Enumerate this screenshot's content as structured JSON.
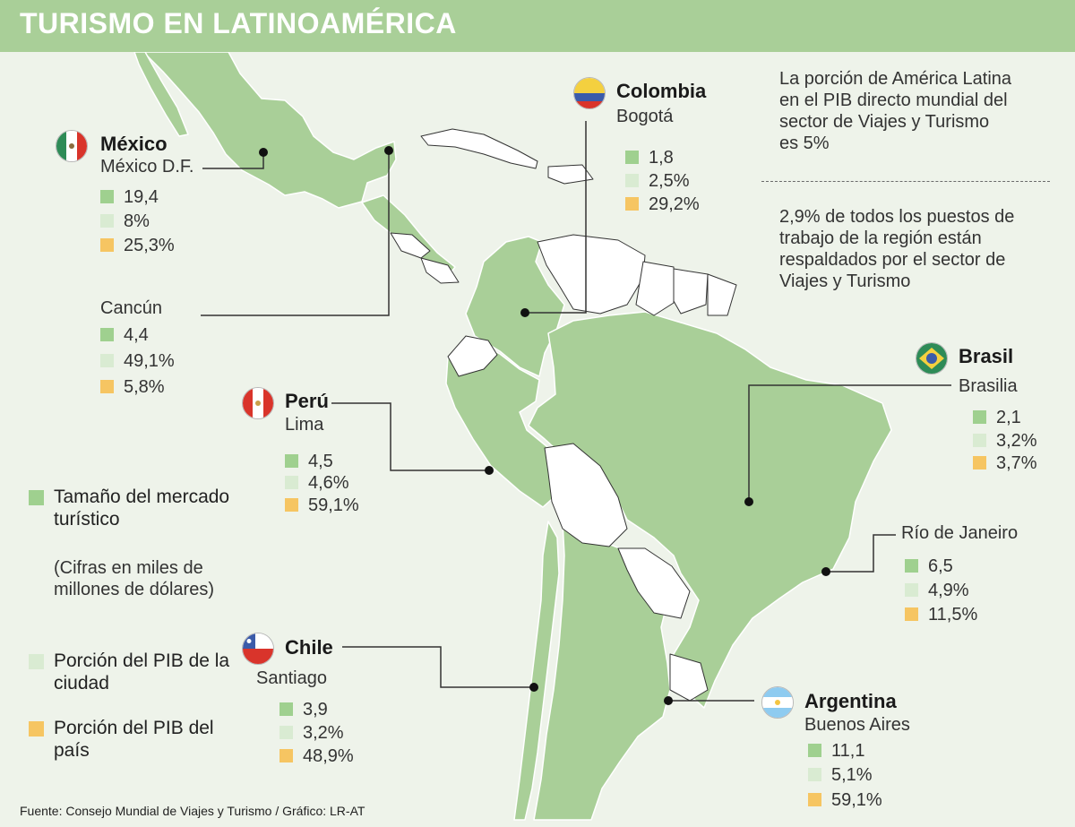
{
  "title": "TURISMO EN LATINOAMÉRICA",
  "notes": {
    "pib_share": "La porción de América Latina en el PIB directo mundial del sector de Viajes y Turismo es 5%",
    "jobs_share": "2,9% de todos los puestos de trabajo de la región están respaldados por el sector de Viajes y Turismo"
  },
  "legend": {
    "market_size": "Tamaño del mercado turístico",
    "market_size_note": "(Cifras en miles de millones de dólares)",
    "city_gdp": "Porción del PIB de la ciudad",
    "country_gdp": "Porción del PIB del país"
  },
  "colors": {
    "market_size": "#9fd08f",
    "city_gdp": "#d9ebd2",
    "country_gdp": "#f6c562",
    "land": "#a9cf98",
    "title_bar": "#a9cf98"
  },
  "mexico": {
    "country": "México",
    "flag_icon": "mexico-flag-icon",
    "df": {
      "city": "México D.F.",
      "market": "19,4",
      "city_gdp": "8%",
      "country_gdp": "25,3%"
    },
    "cancun": {
      "city": "Cancún",
      "market": "4,4",
      "city_gdp": "49,1%",
      "country_gdp": "5,8%"
    }
  },
  "colombia": {
    "country": "Colombia",
    "flag_icon": "colombia-flag-icon",
    "city": "Bogotá",
    "market": "1,8",
    "city_gdp": "2,5%",
    "country_gdp": "29,2%"
  },
  "peru": {
    "country": "Perú",
    "flag_icon": "peru-flag-icon",
    "city": "Lima",
    "market": "4,5",
    "city_gdp": "4,6%",
    "country_gdp": "59,1%"
  },
  "brasil": {
    "country": "Brasil",
    "flag_icon": "brazil-flag-icon",
    "brasilia": {
      "city": "Brasilia",
      "market": "2,1",
      "city_gdp": "3,2%",
      "country_gdp": "3,7%"
    },
    "rio": {
      "city": "Río de Janeiro",
      "market": "6,5",
      "city_gdp": "4,9%",
      "country_gdp": "11,5%"
    }
  },
  "chile": {
    "country": "Chile",
    "flag_icon": "chile-flag-icon",
    "city": "Santiago",
    "market": "3,9",
    "city_gdp": "3,2%",
    "country_gdp": "48,9%"
  },
  "argentina": {
    "country": "Argentina",
    "flag_icon": "argentina-flag-icon",
    "city": "Buenos Aires",
    "market": "11,1",
    "city_gdp": "5,1%",
    "country_gdp": "59,1%"
  },
  "source": "Fuente: Consejo Mundial de Viajes y Turismo / Gráfico: LR-AT"
}
